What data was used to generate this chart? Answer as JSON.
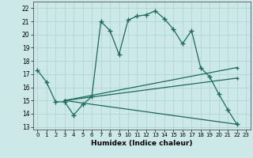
{
  "xlabel": "Humidex (Indice chaleur)",
  "xlim": [
    -0.5,
    23.5
  ],
  "ylim": [
    12.8,
    22.5
  ],
  "yticks": [
    13,
    14,
    15,
    16,
    17,
    18,
    19,
    20,
    21,
    22
  ],
  "xticks": [
    0,
    1,
    2,
    3,
    4,
    5,
    6,
    7,
    8,
    9,
    10,
    11,
    12,
    13,
    14,
    15,
    16,
    17,
    18,
    19,
    20,
    21,
    22,
    23
  ],
  "bg_color": "#cce8e8",
  "line_color": "#1a6b5a",
  "grid_color": "#b0d4d4",
  "lines": [
    {
      "x": [
        0,
        1,
        2,
        3,
        4,
        5,
        6,
        7,
        8,
        9,
        10,
        11,
        12,
        13,
        14,
        15,
        16,
        17,
        18,
        19,
        20,
        21,
        22
      ],
      "y": [
        17.3,
        16.4,
        14.9,
        14.9,
        13.9,
        14.7,
        15.3,
        21.0,
        20.3,
        18.5,
        21.1,
        21.4,
        21.5,
        21.8,
        21.2,
        20.4,
        19.3,
        20.3,
        17.5,
        16.8,
        15.5,
        14.3,
        13.2
      ],
      "style": "solid",
      "marker": true
    },
    {
      "x": [
        3,
        22
      ],
      "y": [
        15.0,
        17.5
      ],
      "style": "solid",
      "marker": false
    },
    {
      "x": [
        3,
        22
      ],
      "y": [
        15.0,
        16.7
      ],
      "style": "solid",
      "marker": false
    },
    {
      "x": [
        3,
        22
      ],
      "y": [
        15.0,
        13.2
      ],
      "style": "solid",
      "marker": false
    }
  ]
}
